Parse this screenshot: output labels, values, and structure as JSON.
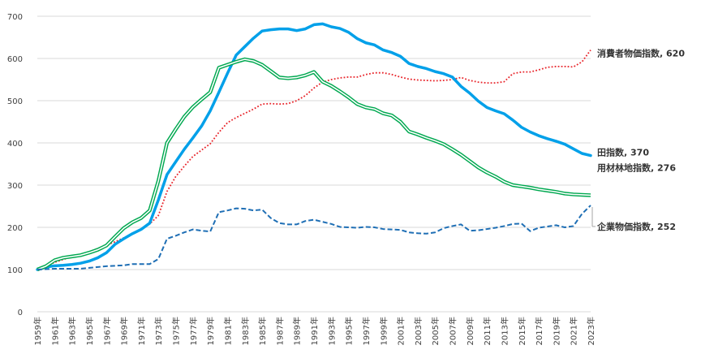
{
  "chart_data": {
    "type": "line",
    "title": "",
    "xlabel": "",
    "ylabel": "",
    "ylim": [
      0,
      700
    ],
    "y_ticks": [
      0,
      100,
      200,
      300,
      400,
      500,
      600,
      700
    ],
    "x_tick_labels": [
      "1959年",
      "1961年",
      "1963年",
      "1965年",
      "1967年",
      "1969年",
      "1971年",
      "1973年",
      "1975年",
      "1977年",
      "1979年",
      "1981年",
      "1983年",
      "1985年",
      "1987年",
      "1989年",
      "1991年",
      "1993年",
      "1995年",
      "1997年",
      "1999年",
      "2001年",
      "2003年",
      "2005年",
      "2007年",
      "2009年",
      "2011年",
      "2013年",
      "2015年",
      "2017年",
      "2019年",
      "2021年",
      "2023年"
    ],
    "grid": true,
    "legend": "none",
    "x": [
      1959,
      1960,
      1961,
      1962,
      1963,
      1964,
      1965,
      1966,
      1967,
      1968,
      1969,
      1970,
      1971,
      1972,
      1973,
      1974,
      1975,
      1976,
      1977,
      1978,
      1979,
      1980,
      1981,
      1982,
      1983,
      1984,
      1985,
      1986,
      1987,
      1988,
      1989,
      1990,
      1991,
      1992,
      1993,
      1994,
      1995,
      1996,
      1997,
      1998,
      1999,
      2000,
      2001,
      2002,
      2003,
      2004,
      2005,
      2006,
      2007,
      2008,
      2009,
      2010,
      2011,
      2012,
      2013,
      2014,
      2015,
      2016,
      2017,
      2018,
      2019,
      2020,
      2021,
      2022,
      2023
    ],
    "series": [
      {
        "key": "cpi",
        "name": "消費者物価指数",
        "end_value": "620",
        "color": "#e8252b",
        "style": "dotted",
        "values": [
          100,
          108,
          117,
          124,
          130,
          135,
          142,
          150,
          158,
          166,
          175,
          186,
          196,
          208,
          228,
          285,
          320,
          345,
          368,
          383,
          398,
          425,
          448,
          460,
          470,
          480,
          492,
          493,
          492,
          493,
          500,
          512,
          530,
          544,
          550,
          554,
          556,
          556,
          562,
          566,
          566,
          562,
          556,
          551,
          549,
          548,
          547,
          548,
          550,
          555,
          548,
          544,
          542,
          542,
          545,
          564,
          568,
          568,
          573,
          579,
          581,
          581,
          580,
          592,
          620
        ]
      },
      {
        "key": "paddy",
        "name": "田指数",
        "end_value": "370",
        "color": "#00a0e9",
        "style": "thick",
        "values": [
          100,
          106,
          109,
          110,
          112,
          115,
          120,
          128,
          140,
          160,
          173,
          185,
          195,
          210,
          265,
          325,
          355,
          385,
          412,
          440,
          476,
          520,
          565,
          608,
          628,
          648,
          665,
          668,
          670,
          670,
          666,
          670,
          680,
          682,
          675,
          671,
          662,
          647,
          637,
          632,
          620,
          614,
          605,
          588,
          581,
          576,
          569,
          564,
          556,
          534,
          518,
          499,
          484,
          476,
          469,
          454,
          437,
          426,
          417,
          410,
          404,
          397,
          386,
          375,
          370
        ]
      },
      {
        "key": "forest",
        "name": "用材林地指数",
        "end_value": "276",
        "color": "#00a850",
        "style": "double",
        "values": [
          100,
          108,
          122,
          128,
          131,
          134,
          140,
          147,
          157,
          178,
          198,
          212,
          222,
          240,
          310,
          400,
          432,
          462,
          485,
          503,
          520,
          578,
          585,
          592,
          598,
          594,
          585,
          570,
          555,
          553,
          555,
          560,
          568,
          545,
          535,
          522,
          508,
          492,
          484,
          480,
          470,
          465,
          450,
          427,
          420,
          412,
          405,
          397,
          385,
          372,
          357,
          342,
          330,
          320,
          308,
          300,
          297,
          294,
          290,
          287,
          284,
          280,
          278,
          277,
          276
        ]
      },
      {
        "key": "corp",
        "name": "企業物価指数",
        "end_value": "252",
        "color": "#1f6fb5",
        "style": "dashed",
        "values": [
          100,
          101,
          102,
          102,
          102,
          102,
          104,
          106,
          108,
          109,
          110,
          113,
          113,
          113,
          125,
          173,
          180,
          188,
          195,
          192,
          190,
          236,
          240,
          245,
          244,
          240,
          242,
          222,
          210,
          207,
          207,
          215,
          218,
          213,
          208,
          201,
          200,
          199,
          201,
          200,
          196,
          195,
          194,
          188,
          186,
          185,
          188,
          198,
          203,
          207,
          192,
          193,
          196,
          199,
          203,
          208,
          209,
          191,
          199,
          202,
          205,
          200,
          203,
          232,
          252
        ]
      }
    ]
  }
}
